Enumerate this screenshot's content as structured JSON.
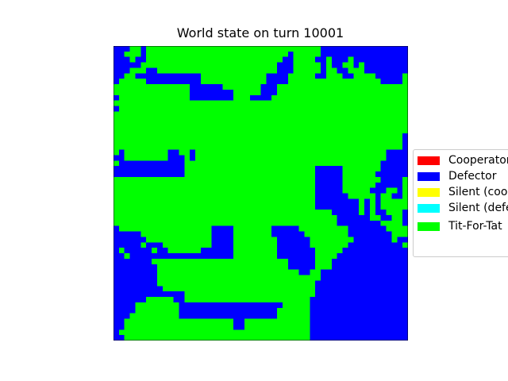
{
  "chart_data": {
    "type": "heatmap",
    "title": "World state on turn 10001",
    "xlabel": "",
    "ylabel": "",
    "grid": false,
    "legend_position": "right",
    "legend": [
      {
        "label": "Cooperator",
        "color": "#ff0000",
        "code": "C"
      },
      {
        "label": "Defector",
        "color": "#0000ff",
        "code": "D"
      },
      {
        "label": "Silent (coop",
        "color": "#ffff00",
        "code": "Y"
      },
      {
        "label": "Silent (defe",
        "color": "#00ffff",
        "code": "K"
      },
      {
        "label": "Tit-For-Tat",
        "color": "#00ff00",
        "code": "T"
      }
    ],
    "rows": [
      "DDDTTDTTTTTTTTTTTTTTTTTTTTTTTTTTTTTTTTDDDDDDDDDDDDDDDD",
      "DDTTTDTTTTTTTTTTTTTTTTTTTTTTTTTTDTTTTTDDDDDDDDDDDDDDDD",
      "DDDTDDTTTTTTTTTTTTTTTTTTTTTTTTTDDTTTTDDTDDDTDDDDDDDDDD",
      "DDDDDTTTTTTTTTTTTTTTTTTTTTTTTTDDDTTTTTDTDDTTDTDDDDDDDD",
      "DDDTTTDDTTTTTTTTTTTTTTTTTTTTTTDDDTTTTTDTTDDTTTDDDDDDDD",
      "DDTTDDDDDDDDDDDDTTTTTTTTTTTTDDDDTTTTTDDTTTDDTTTTDDDDDT",
      "DTTTTTDDDDDDDDDDTTTTTTTTTTTTDDDDTTTTTTTTTTTTTTTTTDDDDT",
      "TTTTTTTTTTTTTTDDDDDDTTTTTTTDDDTTTTTTTTTTTTTTTTTTTTTTTT",
      "TTTTTTTTTTTTTTDDDDDDDDTTTTTDDDTTTTTTTTTTTTTTTTTTTTTTTT",
      "DTTTTTTTTTTTTTDDDDDDDDTTTDDDDTTTTTTTTTTTTTTTTTTTTTTTTT",
      "TTTTTTTTTTTTTTTTTTTTTTTTTTTTTTTTTTTTTTTTTTTTTTTTTTTTTT",
      "DTTTTTTTTTTTTTTTTTTTTTTTTTTTTTTTTTTTTTTTTTTTTTTTTTTTTT",
      "TTTTTTTTTTTTTTTTTTTTTTTTTTTTTTTTTTTTTTTTTTTTTTTTTTTTTT",
      "TTTTTTTTTTTTTTTTTTTTTTTTTTTTTTTTTTTTTTTTTTTTTTTTTTTTTT",
      "TTTTTTTTTTTTTTTTTTTTTTTTTTTTTTTTTTTTTTTTTTTTTTTTTTTTTT",
      "TTTTTTTTTTTTTTTTTTTTTTTTTTTTTTTTTTTTTTTTTTTTTTTTTTTTTT",
      "TTTTTTTTTTTTTTTTTTTTTTTTTTTTTTTTTTTTTTTTTTTTTTTTTTTTTD",
      "TTTTTTTTTTTTTTTTTTTTTTTTTTTTTTTTTTTTTTTTTTTTTTTTTTTTTD",
      "TTTTTTTTTTTTTTTTTTTTTTTTTTTTTTTTTTTTTTTTTTTTTTTTTTTTTD",
      "TDTTTTTTTTDDTTDTTTTTTTTTTTTTTTTTTTTTTTTTTTTTTTTTTTDDDD",
      "DDTTTTTTTTDDDTDTTTTTTTTTTTTTTTTTTTTTTTTTTTTTTTTTTTDDDD",
      "TDDDDDDDDDDDDTTTTTTTTTTTTTTTTTTTTTTTTTTTTTTTTTTTTDDDDD",
      "DDDDDDDDDDDDDTTTTTTTTTTTTTTTTTTTTTTTTDDDDDTTTTTTTDDDDD",
      "DDDDDDDDDDDDDTTTTTTTTTTTTTTTTTTTTTTTTDDDDDTTTTTTDDDDDD",
      "TTTTTTTTTTTTTTTTTTTTTTTTTTTTTTTTTTTTTDDDDDTTTTTTTDDDDT",
      "TTTTTTTTTTTTTTTTTTTTTTTTTTTTTTTTTTTTTDDDDDTTTTTTDDDDDT",
      "TTTTTTTTTTTTTTTTTTTTTTTTTTTTTTTTTTTTTDDDDDTTTTTDDDTTDT",
      "TTTTTTTTTTTTTTTTTTTTTTTTTTTTTTTTTTTTTDDDDDDTTTTTDTTDDT",
      "TTTTTTTTTTTTTTTTTTTTTTTTTTTTTTTTTTTTTDDDDDDDDTDTDTTTTT",
      "TTTTTTTTTTTTTTTTTTTTTTTTTTTTTTTTTTTTTDDDDDDDDTDTDTTTTT",
      "TTTTTTTTTTTTTTTTTTTTTTTTTTTTTTTTTTTTTTTTDDDDDTDTDDTTTD",
      "TTTTTTTTTTTTTTTTTTTTTTTTTTTTTTTTTTTTTTTTTDDDDDDTTDDTTD",
      "TTTTTTTTTTTTTTTTTTTTTTTTTTTTTTTTTTTTTTTTTDDDDDDDDTTTTD",
      "DTTTTTTTTTTTTTTTTTDDDDTTTTTTTDDDDDTTTTTTTTTDDDDDDDTTTT",
      "DDDDDTTTTTTTTTTTTTDDDDTTTTTTTDDDDDDTTTTTTTTDDDDDDDDTTT",
      "DDDDDDTTTTTTTTTTTTDDDDTTTTTTTTDDDDDDTTTTTTTTDDDDDDDTDD",
      "DDDDDTDDDTTTTTTTTTDDDDTTTTTTTTDDDDDDTTTTTTTDDDDDDDDDDT",
      "DTDDDDDTDDTTTTTTDDDDDDTTTTTTTTDDDDDDDTTTTTDDDDDDDDDDDD",
      "DDTDDDDDDDDDDDDDDDDDDDTTTTTTTTDDDDDDDTTTTDDDDDDDDDDDDD",
      "DDDDDDDTTTTTTTTTTTTTTTTTTTTTTTTTDDDDDTTTDDDDDDDDDDDDDD",
      "DDDDDDDDTTTTTTTTTTTTTTTTTTTTTTTTDDDDDTTTDDDDDDDDDDDDDD",
      "DDDDDDDDTTTTTTTTTTTTTTTTTTTTTTTTTTDDTTDDDDDDDDDDDDDDDD",
      "DDDDDDDDTTTTTTTTTTTTTTTTTTTTTTTTTTTTTTDDDDDDDDDDDDDDDD",
      "DDDDDDDDTTTTTTTTTTTTTTTTTTTTTTTTTTTTTDDDDDDDDDDDDDDDDD",
      "DDDDDDDDDTTTTTTTTTTTTTTTTTTTTTTTTTTTTDDDDDDDDDDDDDDDDD",
      "DDDDDDDDDDDDDTTTTTTTTTTTTTTTTTTTTTTTTDDDDDDDDDDDDDDDDD",
      "DDDDDDTTTTTDDTTTTTTTTTTTTTTTTTTTTTTTDDDDDDDDDDDDDDDDDD",
      "DDDDTTTTTTTTDDDDDDDDDDDDDDDDDDDTTTTTDDDDDDDDDDDDDDDDDD",
      "DDDDTTTTTTTTDDDDDDDDDDDDDDDDDDTTTTTTDDDDDDDDDDDDDDDDDD",
      "DDDTTTTTTTTTDDDDDDDDDDDDDDDDDDTTTTTTDDDDDDDDDDDDDDDDDD",
      "DDTTTTTTTTTTTTTTTTTTTTDDTTTTTTTTTTTTDDDDDDDDDDDDDDDDDD",
      "DDTTTTTTTTTTTTTTTTTTTTDDTTTTTTTTTTTTDDDDDDDDDDDDDDDDDD",
      "DTTTTTTTTTTTTTTTTTTTTTTTTTTTTTTTTTTTDDDDDDDDDDDDDDDDDD",
      "DDTTTTTTTTTTTTTTTTTTTTTTTTTTTTTTTTTTDDDDDDDDDDDDDDDDDD"
    ]
  }
}
